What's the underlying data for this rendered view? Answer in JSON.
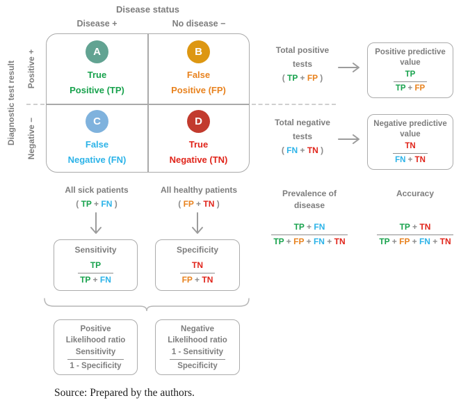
{
  "colors": {
    "tp": "#18a24d",
    "fp": "#e8821e",
    "fn": "#2cb3e8",
    "tn": "#e0241a",
    "gray": "#7d7d7d",
    "op": "#8c8c8c",
    "circle_a": "#62a392",
    "circle_b": "#dd9712",
    "circle_c": "#7fb2dd",
    "circle_d": "#c23b2e",
    "box_border": "#ababab"
  },
  "header": {
    "title": "Disease status",
    "col1": "Disease +",
    "col2": "No disease −"
  },
  "side": {
    "label": "Diagnostic test result",
    "row1": "Positive +",
    "row2": "Negative −"
  },
  "matrix": {
    "cells": [
      {
        "letter": "A",
        "line1": "True",
        "line2": "Positive (TP)"
      },
      {
        "letter": "B",
        "line1": "False",
        "line2": "Positive (FP)"
      },
      {
        "letter": "C",
        "line1": "False",
        "line2": "Negative (FN)"
      },
      {
        "letter": "D",
        "line1": "True",
        "line2": "Negative (TN)"
      }
    ]
  },
  "flows": {
    "positive": {
      "line1": "Total positive",
      "line2": "tests",
      "tokens": [
        {
          "t": "( ",
          "c": "op"
        },
        {
          "t": "TP",
          "c": "tp"
        },
        {
          "t": " + ",
          "c": "op"
        },
        {
          "t": "FP",
          "c": "fp"
        },
        {
          "t": " )",
          "c": "op"
        }
      ]
    },
    "negative": {
      "line1": "Total negative",
      "line2": "tests",
      "tokens": [
        {
          "t": "( ",
          "c": "op"
        },
        {
          "t": "FN",
          "c": "fn"
        },
        {
          "t": " + ",
          "c": "op"
        },
        {
          "t": "TN",
          "c": "tn"
        },
        {
          "t": " )",
          "c": "op"
        }
      ]
    },
    "sick": {
      "label": "All sick patients",
      "tokens": [
        {
          "t": "( ",
          "c": "op"
        },
        {
          "t": "TP",
          "c": "tp"
        },
        {
          "t": " + ",
          "c": "op"
        },
        {
          "t": "FN",
          "c": "fn"
        },
        {
          "t": " )",
          "c": "op"
        }
      ]
    },
    "healthy": {
      "label": "All healthy patients",
      "tokens": [
        {
          "t": "( ",
          "c": "op"
        },
        {
          "t": "FP",
          "c": "fp"
        },
        {
          "t": " + ",
          "c": "op"
        },
        {
          "t": "TN",
          "c": "tn"
        },
        {
          "t": " )",
          "c": "op"
        }
      ]
    }
  },
  "boxes": {
    "ppv": {
      "title1": "Positive predictive",
      "title2": "value",
      "num": [
        {
          "t": "TP",
          "c": "tp"
        }
      ],
      "den": [
        {
          "t": "TP",
          "c": "tp"
        },
        {
          "t": " + ",
          "c": "op"
        },
        {
          "t": "FP",
          "c": "fp"
        }
      ]
    },
    "npv": {
      "title1": "Negative predictive",
      "title2": "value",
      "num": [
        {
          "t": "TN",
          "c": "tn"
        }
      ],
      "den": [
        {
          "t": "FN",
          "c": "fn"
        },
        {
          "t": " + ",
          "c": "op"
        },
        {
          "t": "TN",
          "c": "tn"
        }
      ]
    },
    "sensitivity": {
      "title": "Sensitivity",
      "num": [
        {
          "t": "TP",
          "c": "tp"
        }
      ],
      "den": [
        {
          "t": "TP",
          "c": "tp"
        },
        {
          "t": " + ",
          "c": "op"
        },
        {
          "t": "FN",
          "c": "fn"
        }
      ]
    },
    "specificity": {
      "title": "Specificity",
      "num": [
        {
          "t": "TN",
          "c": "tn"
        }
      ],
      "den": [
        {
          "t": "FP",
          "c": "fp"
        },
        {
          "t": " + ",
          "c": "op"
        },
        {
          "t": "TN",
          "c": "tn"
        }
      ]
    },
    "plr": {
      "title1": "Positive",
      "title2": "Likelihood ratio",
      "num": [
        {
          "t": "Sensitivity",
          "c": "gray"
        }
      ],
      "den": [
        {
          "t": "1 - Specificity",
          "c": "gray"
        }
      ]
    },
    "nlr": {
      "title1": "Negative",
      "title2": "Likelihood ratio",
      "num": [
        {
          "t": "1 - Sensitivity",
          "c": "gray"
        }
      ],
      "den": [
        {
          "t": "Specificity",
          "c": "gray"
        }
      ]
    }
  },
  "stats": {
    "prevalence": {
      "title1": "Prevalence of",
      "title2": "disease",
      "num": [
        {
          "t": "TP",
          "c": "tp"
        },
        {
          "t": " + ",
          "c": "op"
        },
        {
          "t": "FN",
          "c": "fn"
        }
      ],
      "den": [
        {
          "t": "TP",
          "c": "tp"
        },
        {
          "t": " + ",
          "c": "op"
        },
        {
          "t": "FP",
          "c": "fp"
        },
        {
          "t": " + ",
          "c": "op"
        },
        {
          "t": "FN",
          "c": "fn"
        },
        {
          "t": " + ",
          "c": "op"
        },
        {
          "t": "TN",
          "c": "tn"
        }
      ]
    },
    "accuracy": {
      "title1": "Accuracy",
      "num": [
        {
          "t": "TP",
          "c": "tp"
        },
        {
          "t": " + ",
          "c": "op"
        },
        {
          "t": "TN",
          "c": "tn"
        }
      ],
      "den": [
        {
          "t": "TP",
          "c": "tp"
        },
        {
          "t": " + ",
          "c": "op"
        },
        {
          "t": "FP",
          "c": "fp"
        },
        {
          "t": " + ",
          "c": "op"
        },
        {
          "t": "FN",
          "c": "fn"
        },
        {
          "t": " + ",
          "c": "op"
        },
        {
          "t": "TN",
          "c": "tn"
        }
      ]
    }
  },
  "source": "Source: Prepared by the authors."
}
